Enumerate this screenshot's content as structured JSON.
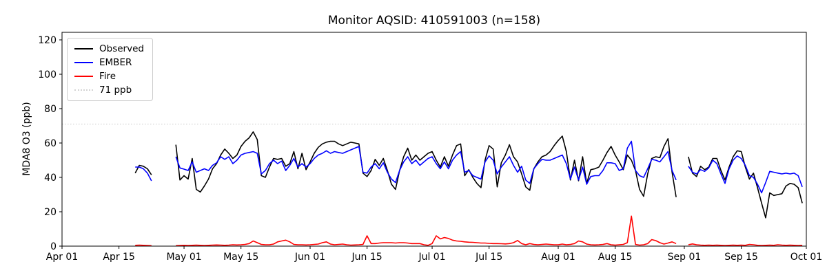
{
  "title": "Monitor AQSID: 410591003 (n=158)",
  "chart_data": {
    "type": "line",
    "title": "Monitor AQSID: 410591003 (n=158)",
    "xlabel": "",
    "ylabel": "MDA8 O3 (ppb)",
    "ylim": [
      0,
      124.4
    ],
    "yticks": [
      0,
      20,
      40,
      60,
      80,
      100,
      120
    ],
    "grid": false,
    "legend_position": "upper left",
    "x_unit": "days since Apr 01",
    "x_ticks": [
      {
        "label": "Apr 01",
        "day": 0
      },
      {
        "label": "Apr 15",
        "day": 14
      },
      {
        "label": "May 01",
        "day": 30
      },
      {
        "label": "May 15",
        "day": 44
      },
      {
        "label": "Jun 01",
        "day": 61
      },
      {
        "label": "Jun 15",
        "day": 75
      },
      {
        "label": "Jul 01",
        "day": 91
      },
      {
        "label": "Jul 15",
        "day": 105
      },
      {
        "label": "Aug 01",
        "day": 122
      },
      {
        "label": "Aug 15",
        "day": 136
      },
      {
        "label": "Sep 01",
        "day": 153
      },
      {
        "label": "Sep 15",
        "day": 167
      },
      {
        "label": "Oct 01",
        "day": 183
      }
    ],
    "threshold": {
      "label": "71 ppb",
      "value": 71,
      "color": "#d3d3d3",
      "style": "dotted"
    },
    "days": [
      18,
      19,
      20,
      21,
      22,
      28,
      29,
      30,
      31,
      32,
      33,
      34,
      35,
      36,
      37,
      38,
      39,
      40,
      41,
      42,
      43,
      44,
      45,
      46,
      47,
      48,
      49,
      50,
      51,
      52,
      53,
      54,
      55,
      56,
      57,
      58,
      59,
      60,
      61,
      62,
      63,
      64,
      65,
      66,
      67,
      68,
      69,
      70,
      71,
      72,
      73,
      74,
      75,
      76,
      77,
      78,
      79,
      80,
      81,
      82,
      83,
      84,
      85,
      86,
      87,
      88,
      89,
      90,
      91,
      92,
      93,
      94,
      95,
      96,
      97,
      98,
      99,
      100,
      101,
      102,
      103,
      104,
      105,
      106,
      107,
      108,
      109,
      110,
      111,
      112,
      113,
      114,
      115,
      116,
      117,
      118,
      119,
      120,
      121,
      122,
      123,
      124,
      125,
      126,
      127,
      128,
      129,
      130,
      131,
      132,
      133,
      134,
      135,
      136,
      137,
      138,
      139,
      140,
      141,
      142,
      143,
      144,
      145,
      146,
      147,
      148,
      149,
      150,
      151,
      154,
      155,
      156,
      157,
      158,
      159,
      160,
      161,
      162,
      163,
      164,
      165,
      166,
      167,
      168,
      169,
      170,
      171,
      172,
      173,
      174,
      175,
      176,
      177,
      178,
      179,
      180,
      181,
      182
    ],
    "series": [
      {
        "name": "Observed",
        "color": "#000000",
        "style": "solid",
        "values": [
          42.5,
          47,
          46.5,
          45,
          41.5,
          59,
          38.5,
          41,
          39,
          51,
          33,
          31.5,
          35,
          39,
          45,
          48,
          53,
          56.5,
          54,
          51,
          53,
          58,
          61,
          63,
          66.5,
          62,
          41,
          40,
          46,
          51,
          50.5,
          51,
          46.5,
          48,
          55,
          45,
          54,
          44.5,
          49,
          54,
          57.5,
          59.5,
          60.5,
          61,
          61,
          59.5,
          58.5,
          59.5,
          60.5,
          60,
          59.5,
          42.5,
          40.5,
          44,
          50.5,
          47,
          51,
          44,
          36,
          33,
          44,
          52,
          57,
          50,
          53,
          50,
          52,
          54,
          55,
          50,
          46,
          52,
          46.5,
          53,
          58.5,
          59.5,
          41,
          44.5,
          40,
          36.5,
          34,
          50,
          58.5,
          56.5,
          34.5,
          48.5,
          53,
          59,
          52,
          49,
          42,
          34.5,
          32.5,
          45,
          49,
          52,
          53,
          55,
          58.5,
          61.5,
          64,
          55,
          38.5,
          50,
          38,
          52,
          36.5,
          44.5,
          45,
          46,
          50,
          54.5,
          58,
          53,
          49,
          44.5,
          53,
          50,
          44,
          33,
          29,
          42,
          51,
          52,
          51.5,
          58,
          62.5,
          43,
          28.5,
          52,
          42.5,
          40.5,
          46.5,
          44.5,
          46,
          51,
          51,
          44,
          38.5,
          46,
          52,
          55.5,
          55,
          46,
          39,
          42.5,
          34,
          25,
          16.5,
          31,
          29.5,
          30,
          30.5,
          35,
          36.5,
          36,
          34,
          25
        ]
      },
      {
        "name": "EMBER",
        "color": "#0000ff",
        "style": "solid",
        "values": [
          46,
          46,
          45,
          42.5,
          38,
          52,
          45.5,
          44.8,
          44,
          49,
          43,
          44,
          45,
          44,
          47,
          48.5,
          52,
          50.5,
          52,
          48,
          50,
          53,
          54,
          54.5,
          55,
          54,
          42,
          44,
          48,
          50,
          48,
          49.5,
          44,
          47,
          51,
          46,
          48,
          46,
          48,
          51,
          53,
          54,
          55.5,
          54,
          55,
          54.5,
          54,
          55,
          56,
          57,
          58,
          43,
          42.5,
          46,
          48,
          45,
          48.5,
          43,
          39,
          37,
          44,
          49,
          52,
          48,
          50,
          47,
          49,
          51,
          52,
          48,
          45,
          49,
          45,
          50,
          53,
          55,
          43,
          44,
          41,
          40,
          39,
          49,
          52.5,
          50,
          42,
          46,
          49,
          52,
          47,
          43,
          46.5,
          38.5,
          36.5,
          45,
          48,
          50.5,
          50,
          50,
          51,
          52,
          53,
          48,
          39,
          46,
          38.5,
          46,
          36,
          40.5,
          41,
          41,
          44,
          48.5,
          48.5,
          48,
          44,
          45,
          57,
          61,
          44,
          41,
          40,
          45,
          50.5,
          50,
          49,
          52,
          55,
          44,
          38.5,
          46.5,
          43,
          42,
          44.5,
          43.5,
          45.5,
          50,
          48,
          42,
          36.5,
          45,
          50,
          52.5,
          51,
          47,
          41,
          40,
          36,
          31,
          37,
          43.5,
          43,
          42.5,
          42,
          42.5,
          42,
          42.5,
          41,
          34.5
        ]
      },
      {
        "name": "Fire",
        "color": "#ff0000",
        "style": "solid",
        "values": [
          0.5,
          0.6,
          0.5,
          0.4,
          0.3,
          0.3,
          0.4,
          0.5,
          0.4,
          0.5,
          0.6,
          0.5,
          0.4,
          0.5,
          0.6,
          0.7,
          0.6,
          0.5,
          0.6,
          0.8,
          0.7,
          0.8,
          1,
          1.5,
          3,
          2,
          1,
          0.8,
          0.8,
          1.2,
          2.5,
          3,
          3.5,
          2.5,
          1,
          0.8,
          0.8,
          0.7,
          0.8,
          1,
          1.2,
          2,
          2.5,
          1.2,
          0.8,
          1,
          1.2,
          0.8,
          0.6,
          0.7,
          0.8,
          1,
          6,
          1.5,
          1.5,
          1.8,
          2,
          2,
          2,
          1.8,
          2,
          2,
          1.8,
          1.5,
          1.5,
          1.5,
          0.8,
          0.5,
          1.5,
          6,
          4.2,
          5,
          4.5,
          3.5,
          3,
          2.8,
          2.5,
          2.3,
          2.2,
          2,
          1.8,
          1.8,
          1.6,
          1.5,
          1.5,
          1.4,
          1.3,
          1.5,
          2,
          3.3,
          1.5,
          0.8,
          1.5,
          1,
          0.8,
          1,
          1.2,
          1,
          0.8,
          0.8,
          1.2,
          0.8,
          1,
          1.5,
          3,
          2.5,
          1.2,
          0.8,
          0.7,
          0.8,
          1,
          1.5,
          0.8,
          0.6,
          0.8,
          1,
          2,
          17.5,
          1,
          0.6,
          0.8,
          1.5,
          3.8,
          3.2,
          2,
          1.2,
          1.8,
          2.5,
          1.5,
          0.8,
          1.3,
          0.8,
          0.6,
          0.5,
          0.6,
          0.5,
          0.6,
          0.5,
          0.4,
          0.5,
          0.6,
          0.5,
          0.6,
          0.5,
          1,
          0.8,
          0.5,
          0.4,
          0.5,
          0.6,
          0.5,
          0.8,
          0.6,
          0.5,
          0.6,
          0.5,
          0.4,
          0.5
        ]
      }
    ]
  }
}
